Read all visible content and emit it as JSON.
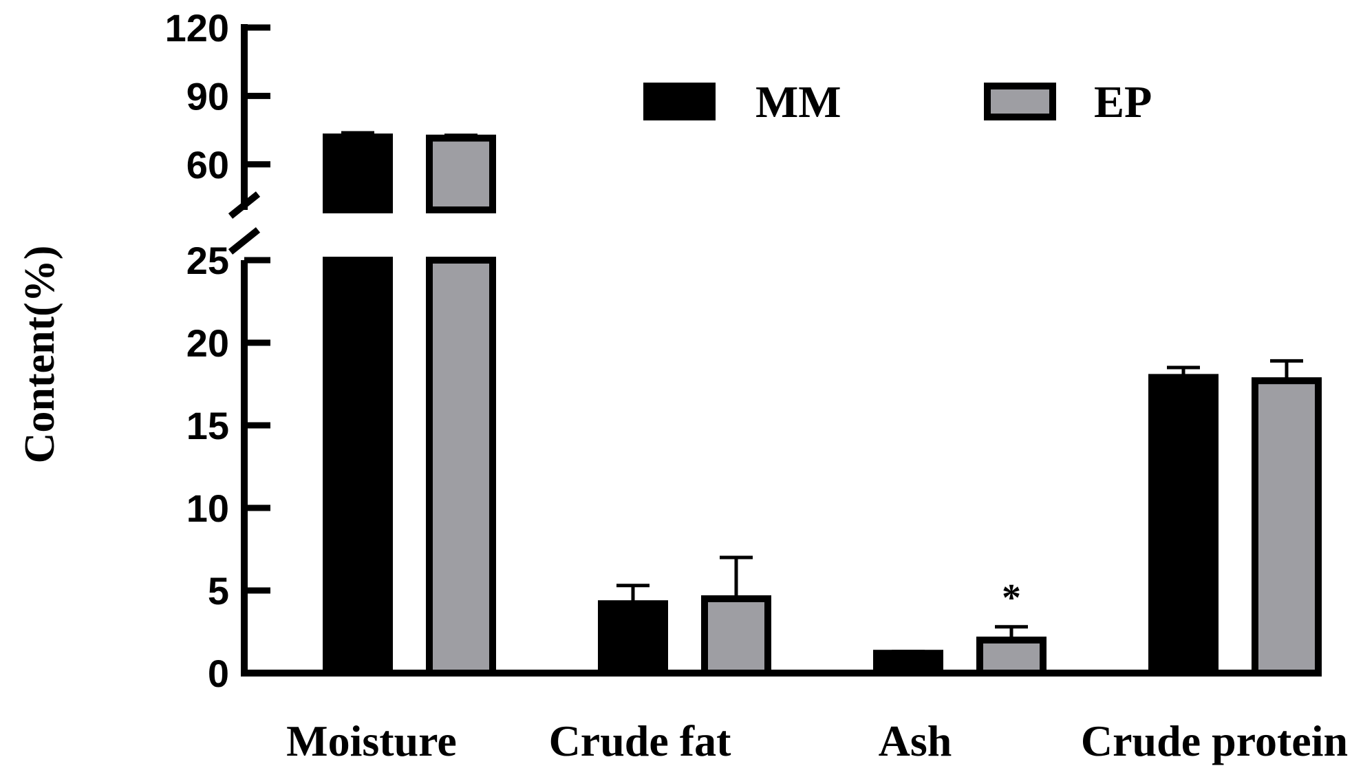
{
  "chart_data": {
    "type": "bar",
    "title": "",
    "xlabel": "",
    "ylabel": "Content(%)",
    "categories": [
      "Moisture",
      "Crude fat",
      "Ash",
      "Crude protein"
    ],
    "series": [
      {
        "name": "MM",
        "values": [
          72.0,
          4.2,
          1.2,
          17.9
        ],
        "errors": [
          1.8,
          1.1,
          0.1,
          0.6
        ],
        "color": "#000000"
      },
      {
        "name": "EP",
        "values": [
          71.5,
          4.5,
          2.0,
          17.7
        ],
        "errors": [
          1.2,
          2.5,
          0.8,
          1.2
        ],
        "color": "#9e9ea3"
      }
    ],
    "y_axis": {
      "broken": true,
      "lower_segment": {
        "range": [
          0,
          25
        ],
        "ticks": [
          "0",
          "5",
          "10",
          "15",
          "20",
          "25"
        ]
      },
      "upper_segment": {
        "range": [
          40,
          120
        ],
        "ticks": [
          "60",
          "90",
          "120"
        ]
      }
    },
    "annotations": [
      {
        "category": "Ash",
        "series": "EP",
        "text": "*"
      }
    ],
    "legend": {
      "position": "top-right",
      "entries": [
        "MM",
        "EP"
      ]
    },
    "grid": false
  }
}
